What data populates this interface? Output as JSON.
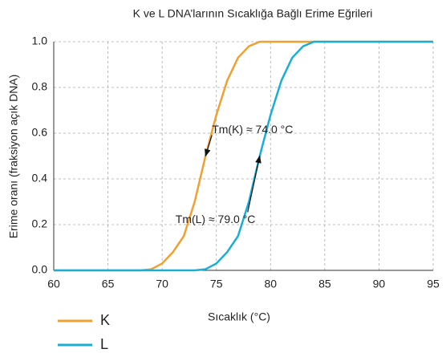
{
  "chart_data": {
    "type": "line",
    "title": "K ve L DNA’larının Sıcaklığa Bağlı Erime Eğrileri",
    "xlabel": "Sıcaklık (°C)",
    "ylabel": "Erime oranı (fraksiyon açık DNA)",
    "x": [
      60,
      65,
      68,
      69,
      70,
      71,
      72,
      73,
      74,
      75,
      76,
      77,
      78,
      79,
      80,
      81,
      82,
      83,
      84,
      85,
      90,
      95
    ],
    "series": [
      {
        "name": "K",
        "color": "#f0a030",
        "values": [
          0,
          0,
          0,
          0.005,
          0.03,
          0.08,
          0.15,
          0.3,
          0.5,
          0.68,
          0.83,
          0.93,
          0.98,
          1,
          1,
          1,
          1,
          1,
          1,
          1,
          1,
          1
        ]
      },
      {
        "name": "L",
        "color": "#1aaed6",
        "values": [
          0,
          0,
          0,
          0,
          0,
          0,
          0,
          0,
          0.005,
          0.03,
          0.08,
          0.15,
          0.3,
          0.5,
          0.68,
          0.83,
          0.93,
          0.98,
          1,
          1,
          1,
          1
        ]
      }
    ],
    "xlim": [
      60,
      95
    ],
    "xticks": [
      60,
      65,
      70,
      75,
      80,
      85,
      90,
      95
    ],
    "ylim": [
      0,
      1
    ],
    "yticks": [
      {
        "value": 0,
        "label": "0.0"
      },
      0.2,
      0.4,
      0.6,
      0.8,
      {
        "value": 1,
        "label": "1.0"
      }
    ],
    "grid": true,
    "legend": "bottom-left",
    "annotations": [
      {
        "text": "Tm(K) ≈ 74.0 °C",
        "x": 74,
        "y": 0.5
      },
      {
        "text": "Tm(L) ≈ 79.0 °C",
        "x": 79,
        "y": 0.5
      }
    ]
  }
}
